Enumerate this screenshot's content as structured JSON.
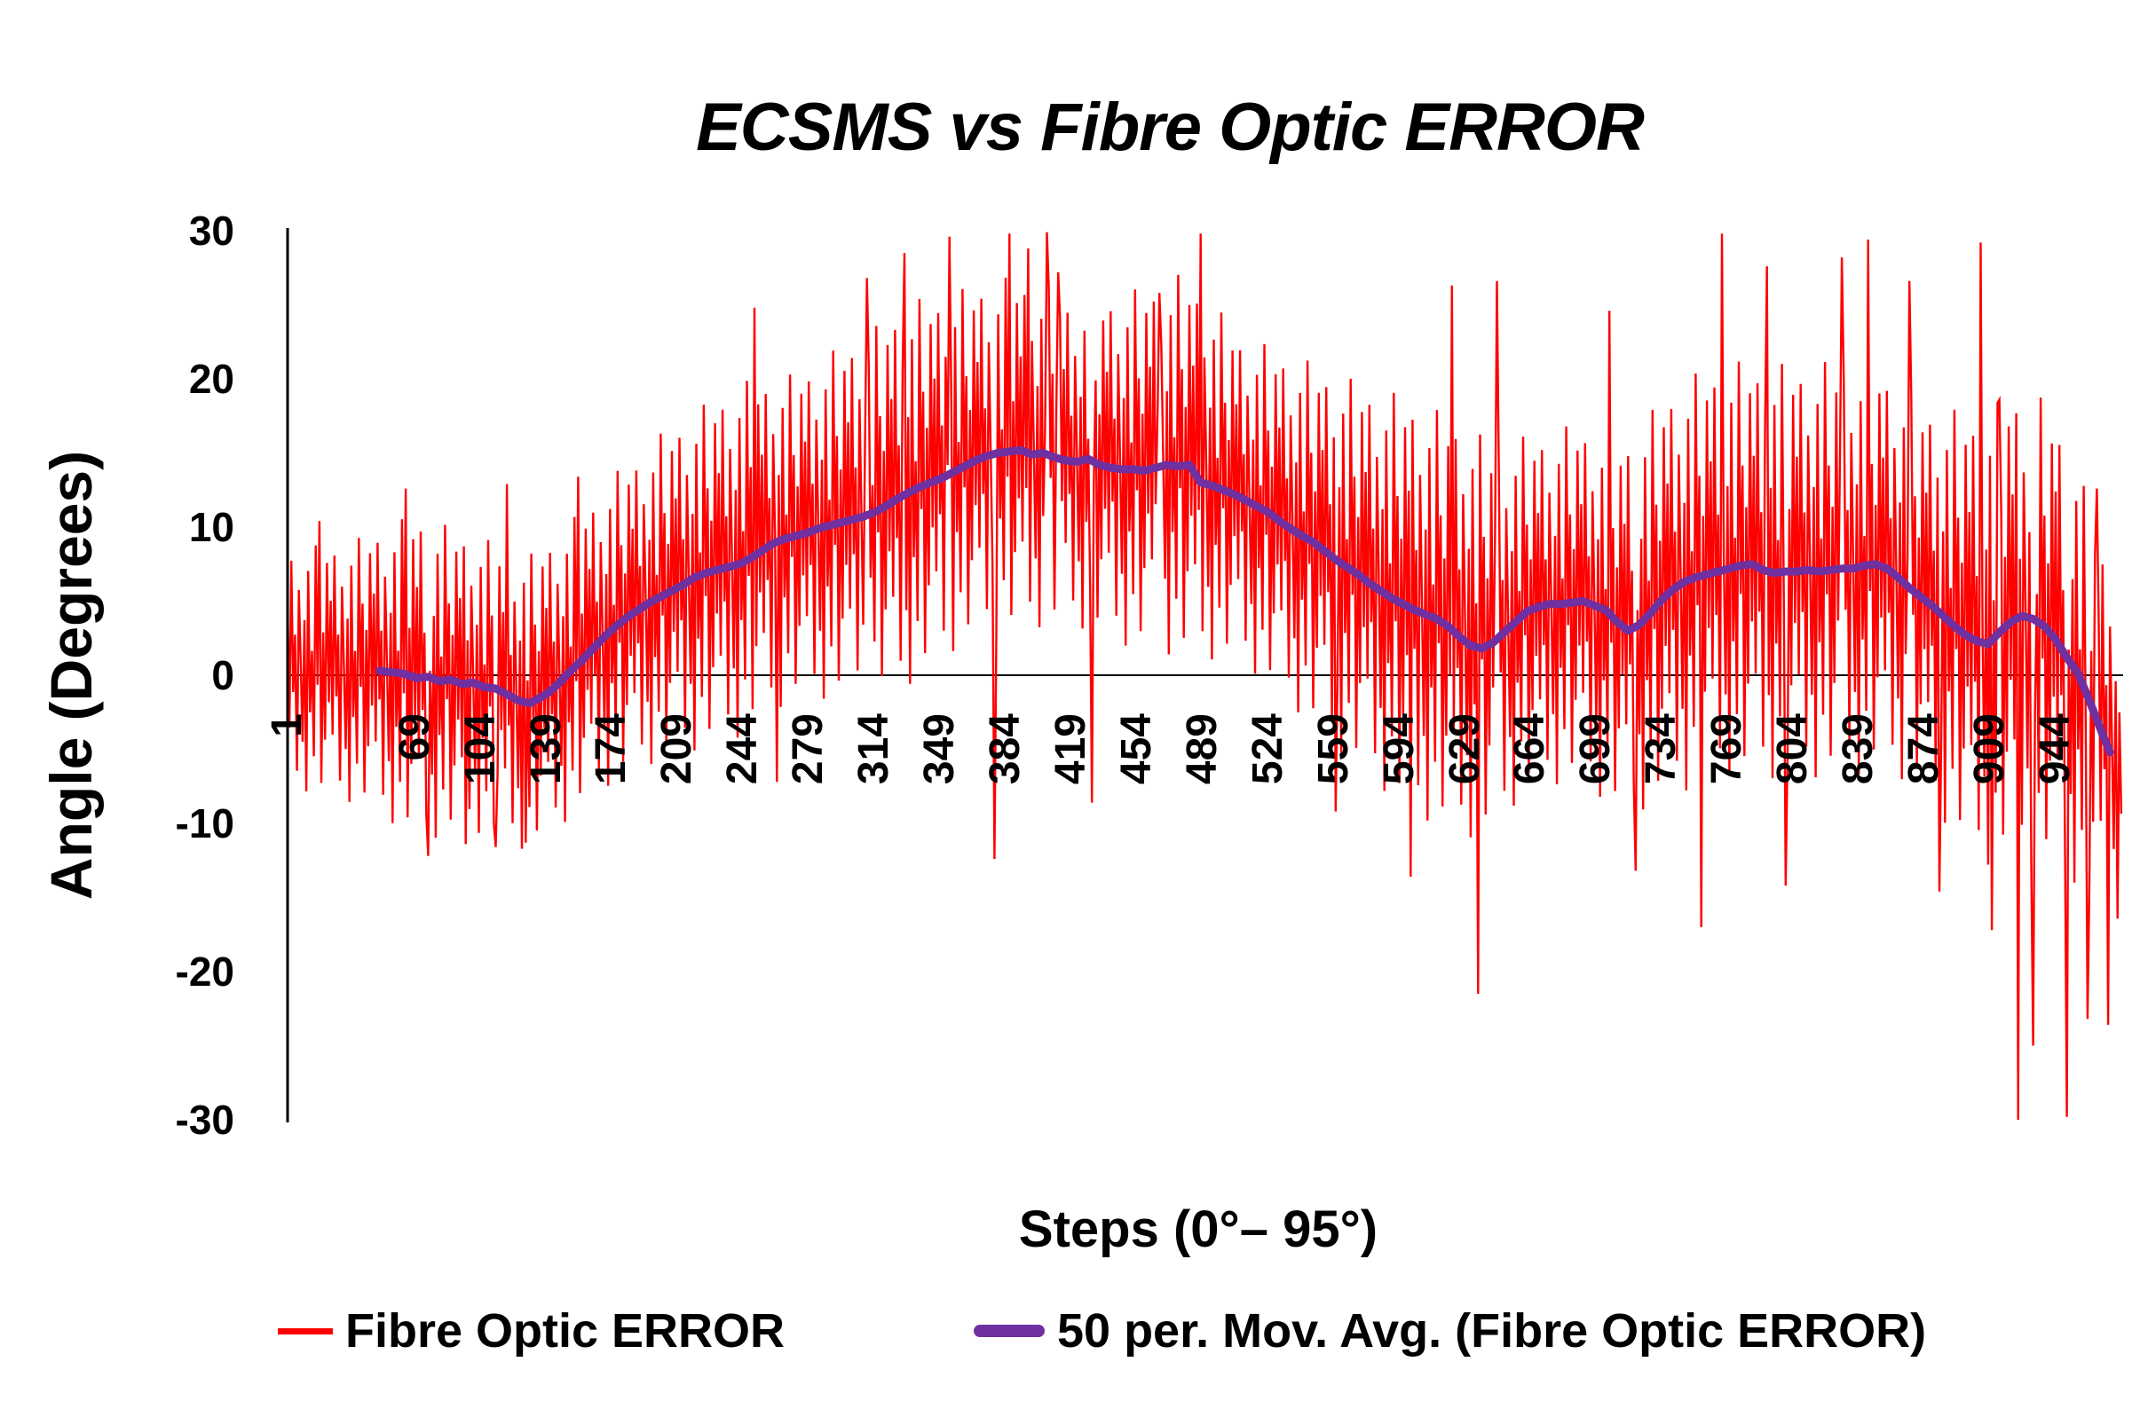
{
  "chart": {
    "title": "ECSMS vs Fibre Optic ERROR",
    "x_axis_title": "Steps (0°– 95°)",
    "y_axis_title": "Angle (Degrees)",
    "legend": [
      {
        "label": "Fibre Optic ERROR",
        "color": "#FF0000",
        "swatch": "thin-line"
      },
      {
        "label": "50 per. Mov. Avg. (Fibre Optic ERROR)",
        "color": "#7030A0",
        "swatch": "thick-line"
      }
    ],
    "colors": {
      "error_series": "#FF0000",
      "moving_avg_series": "#7030A0",
      "axis": "#000000",
      "background": "#FFFFFF"
    }
  },
  "chart_data": {
    "type": "line",
    "title": "ECSMS vs Fibre Optic ERROR",
    "xlabel": "Steps (0°– 95°)",
    "ylabel": "Angle (Degrees)",
    "ylim": [
      -30,
      30
    ],
    "x_step_range": [
      1,
      980
    ],
    "grid": false,
    "legend_position": "bottom",
    "y_ticks": [
      30,
      20,
      10,
      0,
      -10,
      -20,
      -30
    ],
    "x_ticks": [
      1,
      69,
      104,
      139,
      174,
      209,
      244,
      279,
      314,
      349,
      384,
      419,
      454,
      489,
      524,
      559,
      594,
      629,
      664,
      699,
      734,
      769,
      804,
      839,
      874,
      909,
      944
    ],
    "series": [
      {
        "name": "Fibre Optic ERROR",
        "color": "#FF0000",
        "line_width": 2.4,
        "representation": "dense noisy error signal; values synthesized from center trend + amplitude envelope + repeating texture pattern, with measured extreme spikes",
        "synthesis": {
          "sample_step": 1,
          "center_points": [
            [
              1,
              0.5
            ],
            [
              25,
              0.3
            ],
            [
              50,
              0.3
            ],
            [
              80,
              -0.3
            ],
            [
              100,
              -0.5
            ],
            [
              130,
              -1.9
            ],
            [
              150,
              0.2
            ],
            [
              175,
              3.2
            ],
            [
              200,
              5.3
            ],
            [
              230,
              7.1
            ],
            [
              260,
              8.9
            ],
            [
              290,
              10.1
            ],
            [
              314,
              11.0
            ],
            [
              340,
              12.8
            ],
            [
              370,
              14.6
            ],
            [
              395,
              15.0
            ],
            [
              420,
              14.4
            ],
            [
              450,
              13.9
            ],
            [
              480,
              14.2
            ],
            [
              510,
              11.9
            ],
            [
              540,
              9.5
            ],
            [
              570,
              6.9
            ],
            [
              600,
              4.7
            ],
            [
              630,
              3.0
            ],
            [
              645,
              2.4
            ],
            [
              660,
              4.1
            ],
            [
              690,
              5.0
            ],
            [
              715,
              3.1
            ],
            [
              740,
              5.8
            ],
            [
              770,
              7.2
            ],
            [
              800,
              7.0
            ],
            [
              830,
              7.2
            ],
            [
              850,
              7.4
            ],
            [
              880,
              4.5
            ],
            [
              905,
              2.2
            ],
            [
              920,
              3.6
            ],
            [
              940,
              2.9
            ],
            [
              955,
              0.3
            ],
            [
              965,
              -3.0
            ],
            [
              979,
              -5.5
            ]
          ],
          "amplitude_points": [
            [
              1,
              8
            ],
            [
              40,
              9
            ],
            [
              70,
              11
            ],
            [
              100,
              10
            ],
            [
              130,
              10
            ],
            [
              160,
              10
            ],
            [
              200,
              11
            ],
            [
              240,
              12
            ],
            [
              270,
              11
            ],
            [
              300,
              12
            ],
            [
              330,
              13
            ],
            [
              360,
              12
            ],
            [
              390,
              12
            ],
            [
              420,
              11
            ],
            [
              450,
              12
            ],
            [
              480,
              13
            ],
            [
              510,
              11
            ],
            [
              540,
              12
            ],
            [
              570,
              13
            ],
            [
              600,
              14
            ],
            [
              630,
              14
            ],
            [
              660,
              12
            ],
            [
              690,
              12
            ],
            [
              720,
              13
            ],
            [
              750,
              14
            ],
            [
              780,
              14
            ],
            [
              810,
              14
            ],
            [
              840,
              14
            ],
            [
              870,
              13
            ],
            [
              900,
              15
            ],
            [
              930,
              16
            ],
            [
              950,
              15
            ],
            [
              965,
              13
            ],
            [
              979,
              11
            ]
          ],
          "pattern": [
            0.55,
            -0.5,
            0.9,
            -0.2,
            0.28,
            -0.85,
            0.65,
            0.05,
            -0.6,
            0.4,
            -1.0,
            0.8,
            -0.35,
            0.15,
            -0.7,
            1.0,
            -0.12,
            0.5,
            -0.9,
            0.3,
            -0.55,
            0.85,
            -0.25
          ],
          "extremes": [
            [
              18,
              10.4
            ],
            [
              64,
              12.6
            ],
            [
              76,
              -12.2
            ],
            [
              96,
              -11.4
            ],
            [
              112,
              -11.6
            ],
            [
              118,
              12.9
            ],
            [
              128,
              -11.3
            ],
            [
              156,
              13.4
            ],
            [
              250,
              24.8
            ],
            [
              262,
              -7.2
            ],
            [
              310,
              26.8
            ],
            [
              330,
              28.5
            ],
            [
              354,
              29.6
            ],
            [
              378,
              -12.4
            ],
            [
              386,
              29.8
            ],
            [
              396,
              28.8
            ],
            [
              406,
              29.9
            ],
            [
              412,
              27.2
            ],
            [
              430,
              -8.6
            ],
            [
              466,
              25.8
            ],
            [
              488,
              29.8
            ],
            [
              560,
              -9.2
            ],
            [
              600,
              -13.6
            ],
            [
              622,
              26.3
            ],
            [
              636,
              -21.5
            ],
            [
              646,
              26.6
            ],
            [
              706,
              24.6
            ],
            [
              720,
              -13.2
            ],
            [
              755,
              -17.0
            ],
            [
              766,
              29.8
            ],
            [
              790,
              27.6
            ],
            [
              800,
              -14.2
            ],
            [
              830,
              28.2
            ],
            [
              844,
              29.4
            ],
            [
              866,
              26.6
            ],
            [
              882,
              -14.6
            ],
            [
              904,
              29.2
            ],
            [
              910,
              -17.2
            ],
            [
              914,
              18.6
            ],
            [
              924,
              -30.0
            ],
            [
              932,
              -25.0
            ],
            [
              944,
              12.4
            ],
            [
              950,
              -29.8
            ],
            [
              961,
              -23.2
            ],
            [
              966,
              12.6
            ],
            [
              972,
              -23.6
            ],
            [
              978,
              -2.5
            ]
          ]
        }
      },
      {
        "name": "50 per. Mov. Avg. (Fibre Optic ERROR)",
        "color": "#7030A0",
        "line_width": 9,
        "points": [
          [
            50,
            0.3
          ],
          [
            57,
            0.2
          ],
          [
            63,
            0.1
          ],
          [
            70,
            -0.2
          ],
          [
            76,
            -0.1
          ],
          [
            82,
            -0.4
          ],
          [
            88,
            -0.3
          ],
          [
            94,
            -0.6
          ],
          [
            100,
            -0.5
          ],
          [
            106,
            -0.8
          ],
          [
            112,
            -0.9
          ],
          [
            118,
            -1.3
          ],
          [
            124,
            -1.7
          ],
          [
            130,
            -1.9
          ],
          [
            136,
            -1.5
          ],
          [
            141,
            -1.1
          ],
          [
            146,
            -0.5
          ],
          [
            152,
            0.3
          ],
          [
            158,
            1.0
          ],
          [
            164,
            1.8
          ],
          [
            170,
            2.6
          ],
          [
            176,
            3.3
          ],
          [
            182,
            3.9
          ],
          [
            188,
            4.4
          ],
          [
            194,
            4.9
          ],
          [
            200,
            5.3
          ],
          [
            206,
            5.7
          ],
          [
            212,
            6.1
          ],
          [
            218,
            6.6
          ],
          [
            224,
            6.9
          ],
          [
            230,
            7.1
          ],
          [
            236,
            7.3
          ],
          [
            242,
            7.5
          ],
          [
            248,
            7.9
          ],
          [
            254,
            8.4
          ],
          [
            260,
            8.9
          ],
          [
            266,
            9.2
          ],
          [
            272,
            9.4
          ],
          [
            278,
            9.6
          ],
          [
            284,
            9.9
          ],
          [
            290,
            10.1
          ],
          [
            296,
            10.3
          ],
          [
            302,
            10.5
          ],
          [
            308,
            10.7
          ],
          [
            314,
            11.0
          ],
          [
            320,
            11.4
          ],
          [
            326,
            11.9
          ],
          [
            332,
            12.3
          ],
          [
            338,
            12.7
          ],
          [
            344,
            13.0
          ],
          [
            350,
            13.3
          ],
          [
            356,
            13.7
          ],
          [
            362,
            14.1
          ],
          [
            368,
            14.5
          ],
          [
            374,
            14.8
          ],
          [
            380,
            15.0
          ],
          [
            386,
            15.1
          ],
          [
            392,
            15.2
          ],
          [
            398,
            14.9
          ],
          [
            404,
            15.0
          ],
          [
            410,
            14.7
          ],
          [
            416,
            14.5
          ],
          [
            422,
            14.4
          ],
          [
            428,
            14.6
          ],
          [
            434,
            14.2
          ],
          [
            440,
            14.0
          ],
          [
            446,
            13.9
          ],
          [
            452,
            13.9
          ],
          [
            458,
            13.8
          ],
          [
            464,
            14.0
          ],
          [
            470,
            14.2
          ],
          [
            476,
            14.1
          ],
          [
            482,
            14.2
          ],
          [
            488,
            13.0
          ],
          [
            494,
            12.8
          ],
          [
            500,
            12.5
          ],
          [
            506,
            12.2
          ],
          [
            512,
            11.8
          ],
          [
            518,
            11.4
          ],
          [
            524,
            11.0
          ],
          [
            530,
            10.4
          ],
          [
            536,
            9.9
          ],
          [
            542,
            9.4
          ],
          [
            548,
            9.0
          ],
          [
            554,
            8.4
          ],
          [
            560,
            7.8
          ],
          [
            566,
            7.3
          ],
          [
            572,
            6.8
          ],
          [
            578,
            6.2
          ],
          [
            584,
            5.7
          ],
          [
            590,
            5.2
          ],
          [
            596,
            4.8
          ],
          [
            602,
            4.4
          ],
          [
            608,
            4.1
          ],
          [
            614,
            3.8
          ],
          [
            620,
            3.3
          ],
          [
            626,
            2.6
          ],
          [
            632,
            2.0
          ],
          [
            638,
            1.8
          ],
          [
            644,
            2.2
          ],
          [
            650,
            2.9
          ],
          [
            656,
            3.6
          ],
          [
            662,
            4.3
          ],
          [
            668,
            4.6
          ],
          [
            674,
            4.8
          ],
          [
            680,
            4.8
          ],
          [
            686,
            4.9
          ],
          [
            692,
            5.0
          ],
          [
            698,
            4.7
          ],
          [
            704,
            4.4
          ],
          [
            710,
            3.6
          ],
          [
            716,
            3.0
          ],
          [
            722,
            3.4
          ],
          [
            728,
            4.2
          ],
          [
            734,
            5.1
          ],
          [
            740,
            5.8
          ],
          [
            746,
            6.3
          ],
          [
            752,
            6.6
          ],
          [
            758,
            6.8
          ],
          [
            764,
            7.0
          ],
          [
            770,
            7.2
          ],
          [
            776,
            7.4
          ],
          [
            782,
            7.5
          ],
          [
            788,
            7.1
          ],
          [
            794,
            6.9
          ],
          [
            800,
            7.0
          ],
          [
            806,
            7.0
          ],
          [
            812,
            7.1
          ],
          [
            818,
            7.0
          ],
          [
            824,
            7.1
          ],
          [
            830,
            7.2
          ],
          [
            836,
            7.2
          ],
          [
            842,
            7.4
          ],
          [
            848,
            7.5
          ],
          [
            854,
            7.2
          ],
          [
            860,
            6.6
          ],
          [
            866,
            5.9
          ],
          [
            872,
            5.3
          ],
          [
            878,
            4.7
          ],
          [
            884,
            4.0
          ],
          [
            890,
            3.3
          ],
          [
            896,
            2.7
          ],
          [
            902,
            2.3
          ],
          [
            908,
            2.1
          ],
          [
            914,
            2.9
          ],
          [
            920,
            3.6
          ],
          [
            926,
            4.0
          ],
          [
            932,
            3.8
          ],
          [
            938,
            3.3
          ],
          [
            944,
            2.4
          ],
          [
            950,
            1.2
          ],
          [
            956,
            0.1
          ],
          [
            961,
            -1.4
          ],
          [
            966,
            -3.0
          ],
          [
            970,
            -4.3
          ],
          [
            973,
            -5.2
          ]
        ]
      }
    ]
  }
}
